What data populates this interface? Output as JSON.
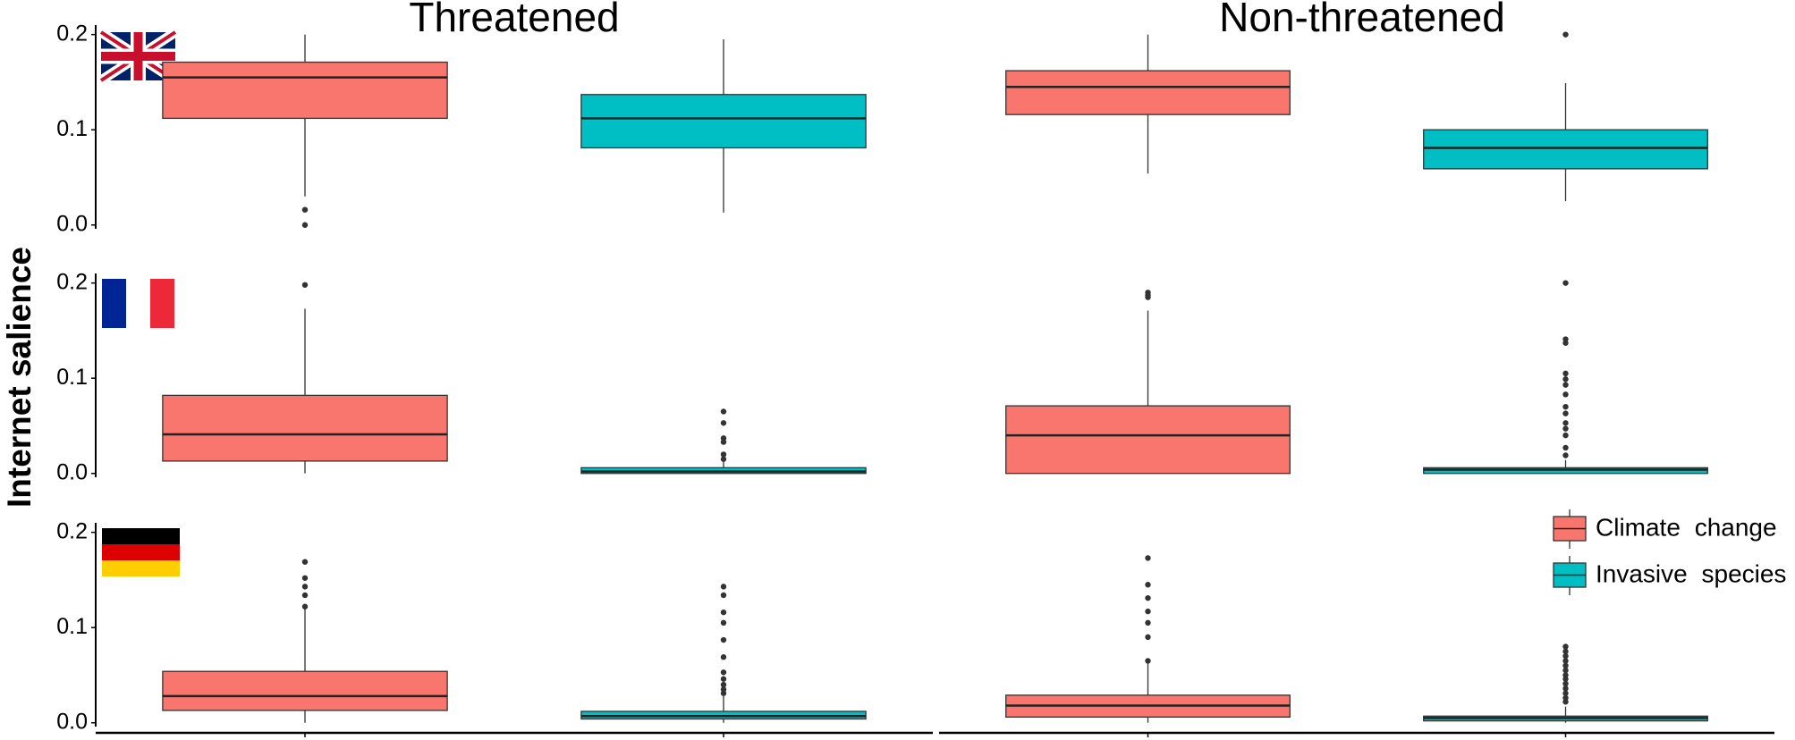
{
  "chart_data": {
    "type": "box",
    "column_titles": [
      "Threatened",
      "Non-threatened"
    ],
    "y_label": "Internet salience",
    "series": [
      {
        "name": "Climate change",
        "color": "#f8766d"
      },
      {
        "name": "Invasive species",
        "color": "#00bfc4"
      }
    ],
    "ylim": [
      -0.004,
      0.21
    ],
    "yticks": [
      {
        "value": 0,
        "label": "0.0"
      },
      {
        "value": 0.1,
        "label": "0.1"
      },
      {
        "value": 0.2,
        "label": "0.2"
      }
    ],
    "grid": false,
    "legend_position": "bottom-right",
    "panels": [
      {
        "boxes": [
          {
            "min": 0.03,
            "q1": 0.112,
            "median": 0.155,
            "q3": 0.171,
            "max": 0.2,
            "outliers": [
              0.016,
              0.0
            ]
          },
          {
            "min": 0.013,
            "q1": 0.081,
            "median": 0.112,
            "q3": 0.137,
            "max": 0.195,
            "outliers": []
          }
        ]
      },
      {
        "boxes": [
          {
            "min": 0.054,
            "q1": 0.116,
            "median": 0.145,
            "q3": 0.162,
            "max": 0.2,
            "outliers": []
          },
          {
            "min": 0.025,
            "q1": 0.059,
            "median": 0.081,
            "q3": 0.1,
            "max": 0.149,
            "outliers": [
              0.2
            ]
          }
        ]
      },
      {
        "boxes": [
          {
            "min": 0.0,
            "q1": 0.013,
            "median": 0.041,
            "q3": 0.082,
            "max": 0.173,
            "outliers": [
              0.198
            ]
          },
          {
            "min": 0.0,
            "q1": 0.0,
            "median": 0.002,
            "q3": 0.006,
            "max": 0.012,
            "outliers": [
              0.065,
              0.053,
              0.037,
              0.033,
              0.02,
              0.015
            ]
          }
        ]
      },
      {
        "boxes": [
          {
            "min": 0.0,
            "q1": 0.0,
            "median": 0.04,
            "q3": 0.071,
            "max": 0.171,
            "outliers": [
              0.19,
              0.187,
              0.185
            ]
          },
          {
            "min": 0.0,
            "q1": 0.0,
            "median": 0.004,
            "q3": 0.006,
            "max": 0.014,
            "outliers": [
              0.2,
              0.141,
              0.137,
              0.105,
              0.099,
              0.093,
              0.083,
              0.07,
              0.063,
              0.053,
              0.047,
              0.04,
              0.027,
              0.019
            ]
          }
        ]
      },
      {
        "boxes": [
          {
            "min": 0.0,
            "q1": 0.013,
            "median": 0.028,
            "q3": 0.054,
            "max": 0.12,
            "outliers": [
              0.169,
              0.152,
              0.143,
              0.134,
              0.122
            ]
          },
          {
            "min": 0.0,
            "q1": 0.004,
            "median": 0.007,
            "q3": 0.012,
            "max": 0.028,
            "outliers": [
              0.143,
              0.134,
              0.116,
              0.105,
              0.087,
              0.069,
              0.053,
              0.046,
              0.04,
              0.035,
              0.031
            ]
          }
        ]
      },
      {
        "boxes": [
          {
            "min": 0.0,
            "q1": 0.006,
            "median": 0.018,
            "q3": 0.029,
            "max": 0.063,
            "outliers": [
              0.173,
              0.145,
              0.131,
              0.117,
              0.105,
              0.09,
              0.065
            ]
          },
          {
            "min": 0.0,
            "q1": 0.002,
            "median": 0.005,
            "q3": 0.007,
            "max": 0.017,
            "outliers": [
              0.08,
              0.075,
              0.07,
              0.065,
              0.06,
              0.055,
              0.05,
              0.046,
              0.041,
              0.036,
              0.031,
              0.026,
              0.022
            ]
          }
        ]
      }
    ]
  }
}
